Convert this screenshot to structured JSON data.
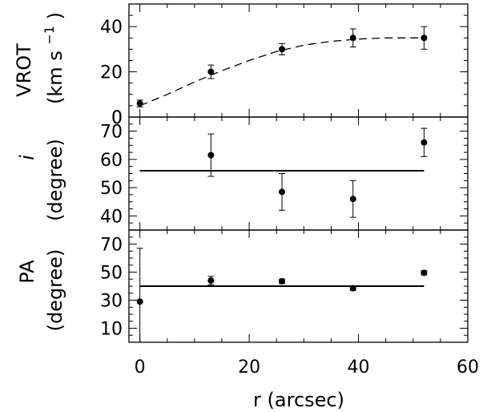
{
  "chart_data": [
    {
      "type": "scatter",
      "panel": "top",
      "ylabel_parts": {
        "main": "VROT",
        "units": "(km s",
        "exp": "−1",
        "close": ")"
      },
      "ylim": [
        0,
        50
      ],
      "yticks": [
        0,
        20,
        40
      ],
      "x": [
        0,
        13,
        26,
        39,
        52
      ],
      "y": [
        6,
        20,
        30,
        35,
        35
      ],
      "yerr": [
        1.5,
        3,
        2.5,
        4,
        5
      ],
      "model_line": {
        "style": "dashed",
        "x": [
          0,
          5,
          10,
          15,
          20,
          25,
          30,
          35,
          40,
          45,
          52
        ],
        "y": [
          5,
          10,
          15.5,
          20.5,
          25,
          29,
          31.8,
          33.5,
          34.5,
          35,
          35
        ]
      }
    },
    {
      "type": "scatter",
      "panel": "middle",
      "ylabel_parts": {
        "main": "i",
        "units": "(degree)"
      },
      "ylim": [
        35,
        75
      ],
      "yticks": [
        40,
        50,
        60,
        70
      ],
      "x": [
        13,
        26,
        39,
        52
      ],
      "y": [
        61.5,
        48.5,
        46,
        66
      ],
      "yerr": [
        7.5,
        6.5,
        6.5,
        5
      ],
      "reference_line": {
        "y": 56,
        "x": [
          0,
          52
        ]
      }
    },
    {
      "type": "scatter",
      "panel": "bottom",
      "ylabel_parts": {
        "main": "PA",
        "units": "(degree)"
      },
      "ylim": [
        0,
        80
      ],
      "yticks": [
        10,
        30,
        50,
        70
      ],
      "x": [
        0,
        13,
        26,
        39,
        52
      ],
      "y": [
        29,
        44,
        43.5,
        38.5,
        49.5
      ],
      "yerr": [
        38,
        3,
        1.5,
        1.5,
        1.5
      ],
      "reference_line": {
        "y": 40,
        "x": [
          0,
          52
        ]
      }
    }
  ],
  "x_axis": {
    "label": "r (arcsec)",
    "xlim": [
      -2,
      60
    ],
    "ticks": [
      0,
      20,
      40,
      60
    ]
  }
}
